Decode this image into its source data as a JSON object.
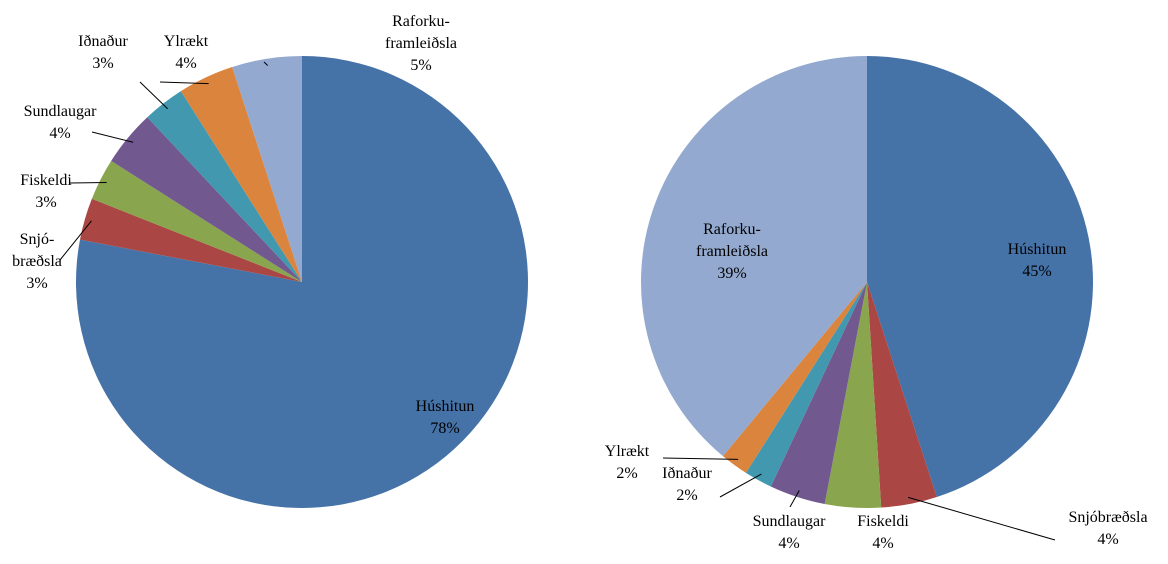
{
  "chart_data": [
    {
      "type": "pie",
      "categories": [
        "Húshitun",
        "Snjó-\nbræðsla",
        "Fiskeldi",
        "Sundlaugar",
        "Iðnaður",
        "Ylrækt",
        "Raforku-\nframleiðsla"
      ],
      "values": [
        78,
        3,
        3,
        4,
        3,
        4,
        5
      ],
      "value_labels": [
        "78%",
        "3%",
        "3%",
        "4%",
        "3%",
        "4%",
        "5%"
      ],
      "colors": [
        "#4572a7",
        "#aa4643",
        "#89a54e",
        "#71588f",
        "#4198af",
        "#db843d",
        "#93a9cf"
      ]
    },
    {
      "type": "pie",
      "categories": [
        "Húshitun",
        "Snjóbræðsla",
        "Fiskeldi",
        "Sundlaugar",
        "Iðnaður",
        "Ylrækt",
        "Raforku-\nframleiðsla"
      ],
      "values": [
        45,
        4,
        4,
        4,
        2,
        2,
        39
      ],
      "value_labels": [
        "45%",
        "4%",
        "4%",
        "4%",
        "2%",
        "2%",
        "39%"
      ],
      "colors": [
        "#4572a7",
        "#aa4643",
        "#89a54e",
        "#71588f",
        "#4198af",
        "#db843d",
        "#93a9cf"
      ]
    }
  ]
}
